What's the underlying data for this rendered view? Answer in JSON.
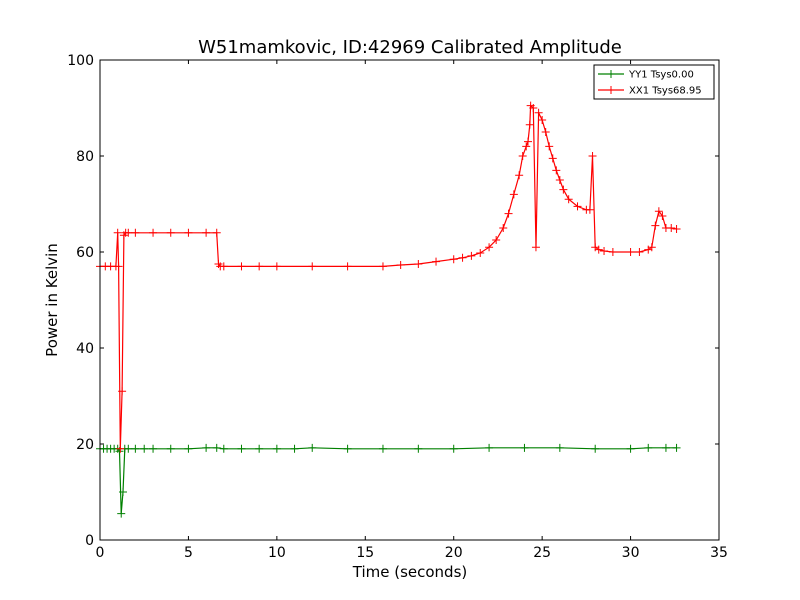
{
  "chart_data": {
    "type": "line",
    "title": "W51mamkovic, ID:42969 Calibrated Amplitude",
    "xlabel": "Time (seconds)",
    "ylabel": "Power in Kelvin",
    "xlim": [
      0,
      35
    ],
    "ylim": [
      0,
      100
    ],
    "xticks": [
      "0",
      "5",
      "10",
      "15",
      "20",
      "25",
      "30",
      "35"
    ],
    "yticks": [
      "0",
      "20",
      "40",
      "60",
      "80",
      "100"
    ],
    "grid": false,
    "legend_position": "top-right",
    "marker": "+",
    "series": [
      {
        "name": "YY1 Tsys0.00",
        "color": "#008000",
        "x": [
          0,
          0.2,
          0.4,
          0.6,
          0.8,
          1.0,
          1.1,
          1.2,
          1.3,
          1.4,
          1.6,
          2.0,
          2.5,
          3.0,
          4.0,
          5.0,
          6.0,
          6.6,
          7.0,
          8.0,
          9.0,
          10.0,
          11.0,
          12.0,
          14.0,
          16.0,
          18.0,
          20.0,
          22.0,
          24.0,
          26.0,
          28.0,
          30.0,
          31.0,
          32.0,
          32.6
        ],
        "y": [
          19,
          19,
          19,
          19,
          19,
          19,
          18.5,
          5.5,
          10,
          19,
          19,
          19,
          19,
          19,
          19,
          19,
          19.2,
          19.2,
          19,
          19,
          19,
          19,
          19,
          19.2,
          19,
          19,
          19,
          19,
          19.2,
          19.2,
          19.2,
          19,
          19,
          19.2,
          19.2,
          19.2
        ]
      },
      {
        "name": "XX1 Tsys68.95",
        "color": "#ff0000",
        "x": [
          0,
          0.3,
          0.6,
          0.9,
          1.0,
          1.05,
          1.15,
          1.25,
          1.35,
          1.45,
          1.6,
          2,
          3,
          4,
          5,
          6,
          6.6,
          6.7,
          6.8,
          7,
          8,
          9,
          10,
          12,
          14,
          16,
          17,
          18,
          19,
          20,
          20.5,
          21,
          21.5,
          22,
          22.4,
          22.8,
          23.1,
          23.4,
          23.7,
          23.9,
          24.1,
          24.2,
          24.3,
          24.35,
          24.5,
          24.65,
          24.8,
          25,
          25.2,
          25.4,
          25.6,
          25.8,
          26,
          26.2,
          26.5,
          27,
          27.5,
          27.7,
          27.85,
          28.0,
          28.2,
          28.5,
          29,
          30,
          30.5,
          31,
          31.2,
          31.4,
          31.6,
          31.8,
          32,
          32.3,
          32.6
        ],
        "y": [
          57,
          57,
          57,
          57,
          64,
          57,
          19,
          31,
          63.5,
          64,
          64,
          64,
          64,
          64,
          64,
          64,
          64,
          57.5,
          57,
          57,
          57,
          57,
          57,
          57,
          57,
          57,
          57.3,
          57.5,
          58,
          58.5,
          58.8,
          59.2,
          59.8,
          61,
          62.5,
          65,
          68,
          72,
          76,
          80,
          82,
          83,
          86.5,
          90.5,
          90,
          61,
          89,
          87.5,
          85,
          82,
          79.5,
          77,
          75,
          73,
          71,
          69.5,
          68.8,
          68.8,
          80,
          61,
          60.5,
          60.2,
          60,
          60,
          60,
          60.5,
          61,
          65.5,
          68.5,
          67.5,
          65,
          65,
          64.8
        ]
      }
    ]
  }
}
